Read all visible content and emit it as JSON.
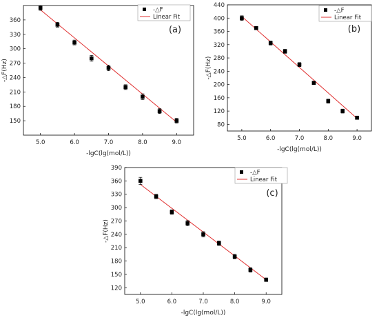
{
  "chart_data": [
    {
      "type": "scatter",
      "panel_label": "(a)",
      "xlabel": "-lgC(lg(mol/L))",
      "ylabel": "-△F(Hz)",
      "xlim": [
        4.5,
        9.5
      ],
      "ylim": [
        120,
        390
      ],
      "xticks": [
        5.0,
        6.0,
        7.0,
        8.0,
        9.0
      ],
      "xtick_labels": [
        "5.0",
        "6.0",
        "7.0",
        "8.0",
        "9.0"
      ],
      "yticks": [
        150,
        180,
        210,
        240,
        270,
        300,
        330,
        360
      ],
      "ytick_labels": [
        "150",
        "180",
        "210",
        "240",
        "270",
        "300",
        "330",
        "360"
      ],
      "legend": [
        "-△F",
        "Linear Fit"
      ],
      "legend_position": "top-center",
      "x": [
        5.0,
        5.5,
        6.0,
        6.5,
        7.0,
        7.5,
        8.0,
        8.5,
        9.0
      ],
      "y": [
        385,
        350,
        313,
        280,
        260,
        220,
        200,
        170,
        150
      ],
      "error": [
        5,
        5,
        5,
        6,
        6,
        5,
        6,
        5,
        5
      ],
      "fit": {
        "x": [
          5.0,
          9.0
        ],
        "y": [
          381,
          147
        ]
      },
      "colors": {
        "points": "#000000",
        "fit": "#e03030"
      }
    },
    {
      "type": "scatter",
      "panel_label": "(b)",
      "xlabel": "-lgC(lg(mol/L))",
      "ylabel": "-△F(Hz)",
      "xlim": [
        4.5,
        9.5
      ],
      "ylim": [
        60,
        440
      ],
      "xticks": [
        5.0,
        6.0,
        7.0,
        8.0,
        9.0
      ],
      "xtick_labels": [
        "5.0",
        "6.0",
        "7.0",
        "8.0",
        "9.0"
      ],
      "yticks": [
        80,
        120,
        160,
        200,
        240,
        280,
        320,
        360,
        400,
        440
      ],
      "ytick_labels": [
        "80",
        "120",
        "160",
        "200",
        "240",
        "280",
        "320",
        "360",
        "400",
        "440"
      ],
      "legend": [
        "-△F",
        "Linear Fit"
      ],
      "legend_position": "top-center",
      "x": [
        5.0,
        5.5,
        6.0,
        6.5,
        7.0,
        7.5,
        8.0,
        8.5,
        9.0
      ],
      "y": [
        400,
        370,
        325,
        300,
        260,
        205,
        150,
        120,
        100
      ],
      "error": [
        7,
        5,
        6,
        6,
        6,
        5,
        6,
        6,
        5
      ],
      "fit": {
        "x": [
          5.0,
          9.0
        ],
        "y": [
          405,
          98
        ]
      },
      "colors": {
        "points": "#000000",
        "fit": "#e03030"
      }
    },
    {
      "type": "scatter",
      "panel_label": "(c)",
      "xlabel": "-lgC(lg(mol/L))",
      "ylabel": "-△F(Hz)",
      "xlim": [
        4.5,
        9.5
      ],
      "ylim": [
        105,
        390
      ],
      "xticks": [
        5.0,
        6.0,
        7.0,
        8.0,
        9.0
      ],
      "xtick_labels": [
        "5.0",
        "6.0",
        "7.0",
        "8.0",
        "9.0"
      ],
      "yticks": [
        120,
        150,
        180,
        210,
        240,
        270,
        300,
        330,
        360,
        390
      ],
      "ytick_labels": [
        "120",
        "150",
        "180",
        "210",
        "240",
        "270",
        "300",
        "330",
        "360",
        "390"
      ],
      "legend": [
        "-△F",
        "Linear Fit"
      ],
      "legend_position": "top-center",
      "x": [
        5.0,
        5.5,
        6.0,
        6.5,
        7.0,
        7.5,
        8.0,
        8.5,
        9.0
      ],
      "y": [
        360,
        325,
        290,
        265,
        240,
        220,
        190,
        160,
        138
      ],
      "error": [
        8,
        5,
        5,
        6,
        6,
        5,
        5,
        5,
        4
      ],
      "fit": {
        "x": [
          5.0,
          9.0
        ],
        "y": [
          352,
          138
        ]
      },
      "colors": {
        "points": "#000000",
        "fit": "#e03030"
      }
    }
  ]
}
